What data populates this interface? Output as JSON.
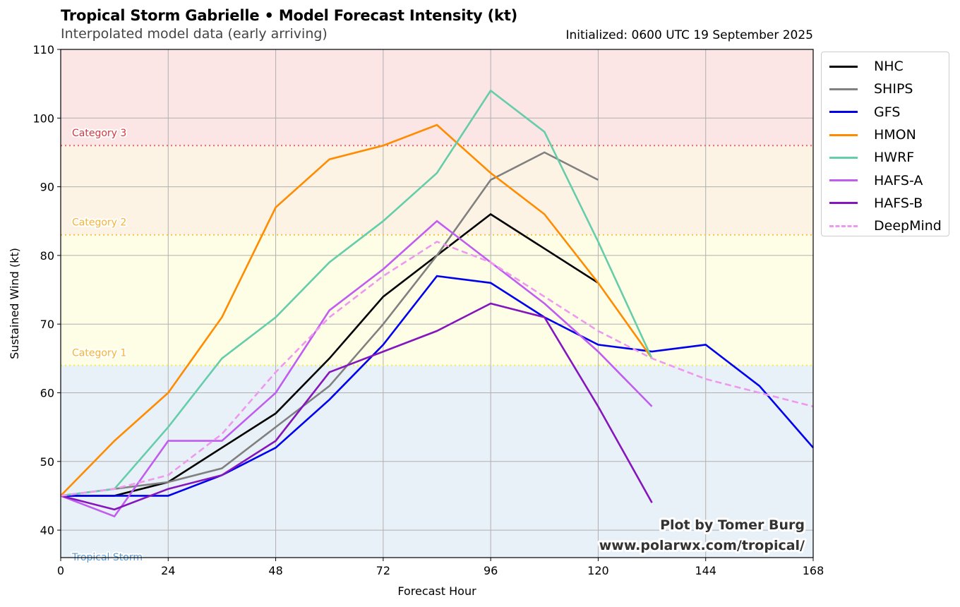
{
  "header": {
    "title": "Tropical Storm Gabrielle • Model Forecast Intensity (kt)",
    "subtitle": "Interpolated model data (early arriving)",
    "initialized": "Initialized: 0600 UTC 19 September 2025"
  },
  "credit": {
    "line1": "Plot by Tomer Burg",
    "line2": "www.polarwx.com/tropical/"
  },
  "chart_data": {
    "type": "line",
    "title": "Tropical Storm Gabrielle • Model Forecast Intensity (kt)",
    "subtitle": "Interpolated model data (early arriving)",
    "xlabel": "Forecast Hour",
    "ylabel": "Sustained Wind (kt)",
    "xlim": [
      0,
      168
    ],
    "ylim": [
      36,
      110
    ],
    "xticks": [
      0,
      24,
      48,
      72,
      96,
      120,
      144,
      168
    ],
    "yticks": [
      40,
      50,
      60,
      70,
      80,
      90,
      100,
      110
    ],
    "grid": true,
    "legend_position": "outside-right-top",
    "bands": [
      {
        "label": "Tropical Storm",
        "from": 34,
        "to": 64,
        "fill": "#e8f0f8",
        "text_color": "#5b9bd5"
      },
      {
        "label": "Category 1",
        "from": 64,
        "to": 83,
        "fill": "#fefee6",
        "line_color": "#eeee55",
        "text_color": "#f5b335"
      },
      {
        "label": "Category 2",
        "from": 83,
        "to": 96,
        "fill": "#fdf3e4",
        "line_color": "#f9c04a",
        "text_color": "#f5b335"
      },
      {
        "label": "Category 3",
        "from": 96,
        "to": 110,
        "fill": "#fbe5e5",
        "line_color": "#e36a6a",
        "text_color": "#d9363e"
      }
    ],
    "series": [
      {
        "name": "NHC",
        "color": "#000000",
        "dashed": false,
        "x": [
          0,
          12,
          24,
          36,
          48,
          60,
          72,
          84,
          96,
          108,
          120
        ],
        "values": [
          45,
          45,
          47,
          52,
          57,
          65,
          74,
          80,
          86,
          81,
          76
        ]
      },
      {
        "name": "SHIPS",
        "color": "#808080",
        "dashed": false,
        "x": [
          0,
          12,
          24,
          36,
          48,
          60,
          72,
          84,
          96,
          108,
          120
        ],
        "values": [
          45,
          46,
          47,
          49,
          55,
          61,
          70,
          80,
          91,
          95,
          91
        ]
      },
      {
        "name": "GFS",
        "color": "#0000ee",
        "dashed": false,
        "x": [
          0,
          12,
          24,
          36,
          48,
          60,
          72,
          84,
          96,
          108,
          120,
          132,
          144,
          156,
          168
        ],
        "values": [
          45,
          45,
          45,
          48,
          52,
          59,
          67,
          77,
          76,
          71,
          67,
          66,
          67,
          61,
          52
        ]
      },
      {
        "name": "HMON",
        "color": "#ff8c00",
        "dashed": false,
        "x": [
          0,
          12,
          24,
          36,
          48,
          60,
          72,
          84,
          96,
          108,
          120,
          132
        ],
        "values": [
          45,
          53,
          60,
          71,
          87,
          94,
          96,
          99,
          92,
          86,
          76,
          65
        ]
      },
      {
        "name": "HWRF",
        "color": "#66cdaa",
        "dashed": false,
        "x": [
          0,
          12,
          24,
          36,
          48,
          60,
          72,
          84,
          96,
          108,
          120,
          132
        ],
        "values": [
          45,
          46,
          55,
          65,
          71,
          79,
          85,
          92,
          104,
          98,
          82,
          65
        ]
      },
      {
        "name": "HAFS-A",
        "color": "#c05cf0",
        "dashed": false,
        "x": [
          0,
          12,
          24,
          36,
          48,
          60,
          72,
          84,
          96,
          108,
          120,
          132
        ],
        "values": [
          45,
          42,
          53,
          53,
          60,
          72,
          78,
          85,
          79,
          73,
          66,
          58
        ]
      },
      {
        "name": "HAFS-B",
        "color": "#8516bd",
        "dashed": false,
        "x": [
          0,
          12,
          24,
          36,
          48,
          60,
          72,
          84,
          96,
          108,
          120,
          132
        ],
        "values": [
          45,
          43,
          46,
          48,
          53,
          63,
          66,
          69,
          73,
          71,
          58,
          44
        ]
      },
      {
        "name": "DeepMind",
        "color": "#ee99ee",
        "dashed": true,
        "x": [
          0,
          12,
          24,
          36,
          48,
          60,
          72,
          84,
          96,
          108,
          120,
          132,
          144,
          156,
          168
        ],
        "values": [
          45,
          46,
          48,
          54,
          63,
          71,
          77,
          82,
          79,
          74,
          69,
          65,
          62,
          60,
          58
        ]
      }
    ]
  }
}
